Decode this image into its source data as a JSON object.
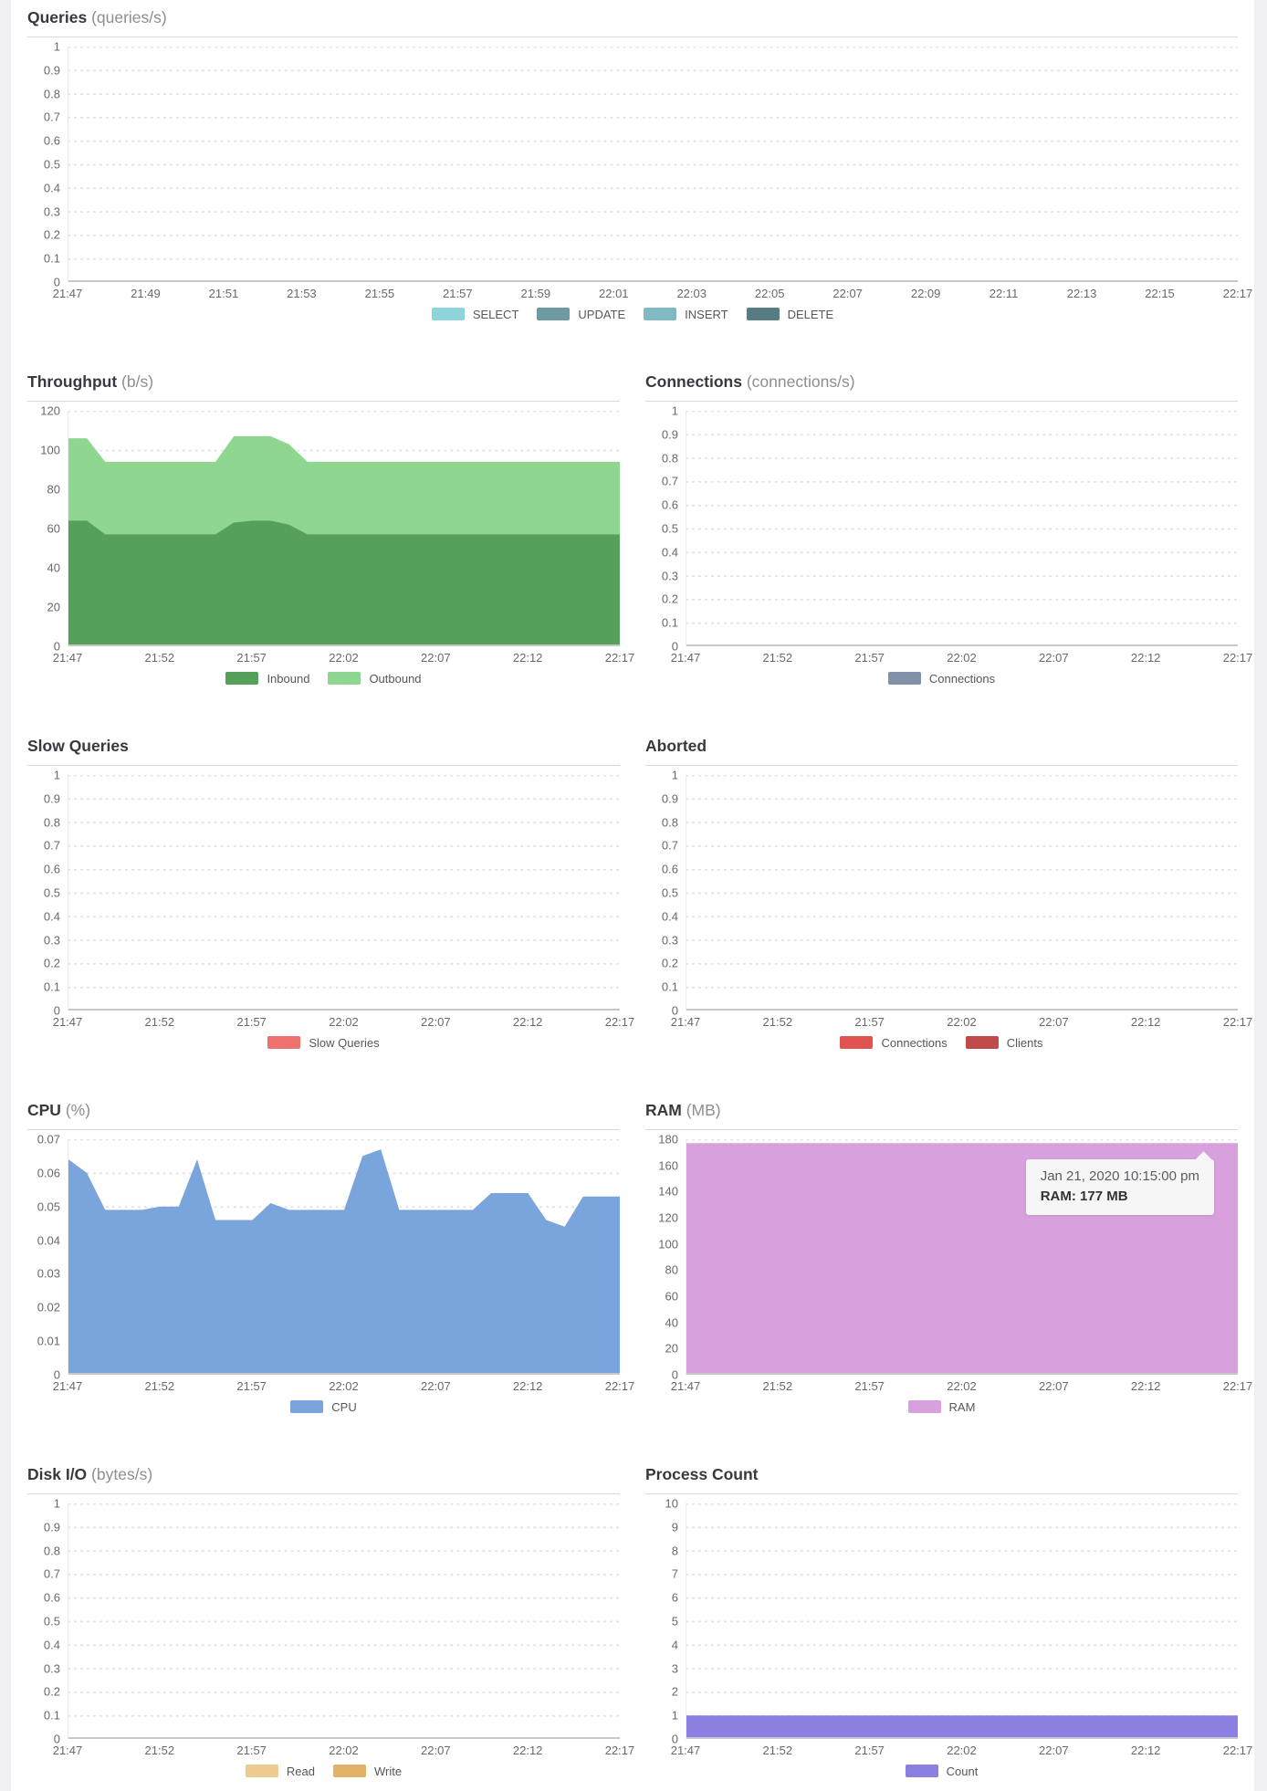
{
  "page": {
    "background": "#f0f0f2",
    "panel_background": "#ffffff"
  },
  "chart_data": [
    {
      "id": "queries",
      "type": "area",
      "stacked": false,
      "full_width": true,
      "title": "Queries",
      "unit": "(queries/s)",
      "ylim": [
        0,
        1
      ],
      "y_tick_labels": [
        "0",
        "0.1",
        "0.2",
        "0.3",
        "0.4",
        "0.5",
        "0.6",
        "0.7",
        "0.8",
        "0.9",
        "1"
      ],
      "x_tick_labels": [
        "21:47",
        "21:49",
        "21:51",
        "21:53",
        "21:55",
        "21:57",
        "21:59",
        "22:01",
        "22:03",
        "22:05",
        "22:07",
        "22:09",
        "22:11",
        "22:13",
        "22:15",
        "22:17"
      ],
      "grid": "dotted",
      "legend_position": "bottom",
      "series": [
        {
          "name": "SELECT",
          "color": "#8ed4db",
          "values": [
            0,
            0
          ]
        },
        {
          "name": "UPDATE",
          "color": "#6e9ba3",
          "values": [
            0,
            0
          ]
        },
        {
          "name": "INSERT",
          "color": "#80bac2",
          "values": [
            0,
            0
          ]
        },
        {
          "name": "DELETE",
          "color": "#587c84",
          "values": [
            0,
            0
          ]
        }
      ]
    },
    {
      "id": "throughput",
      "type": "area",
      "stacked": true,
      "full_width": false,
      "title": "Throughput",
      "unit": "(b/s)",
      "ylim": [
        0,
        120
      ],
      "y_tick_labels": [
        "0",
        "20",
        "40",
        "60",
        "80",
        "100",
        "120"
      ],
      "x_tick_labels": [
        "21:47",
        "21:52",
        "21:57",
        "22:02",
        "22:07",
        "22:12",
        "22:17"
      ],
      "grid": "dotted",
      "legend_position": "bottom",
      "series": [
        {
          "name": "Inbound",
          "color": "#55a15a",
          "values": [
            64,
            64,
            57,
            57,
            57,
            57,
            57,
            57,
            57,
            63,
            64,
            64,
            62,
            57,
            57,
            57,
            57,
            57,
            57,
            57,
            57,
            57,
            57,
            57,
            57,
            57,
            57,
            57,
            57,
            57,
            57
          ]
        },
        {
          "name": "Outbound",
          "color": "#8fd691",
          "values": [
            42,
            42,
            37,
            37,
            37,
            37,
            37,
            37,
            37,
            44,
            43,
            43,
            41,
            37,
            37,
            37,
            37,
            37,
            37,
            37,
            37,
            37,
            37,
            37,
            37,
            37,
            37,
            37,
            37,
            37,
            37
          ]
        }
      ]
    },
    {
      "id": "connections",
      "type": "area",
      "stacked": false,
      "full_width": false,
      "title": "Connections",
      "unit": "(connections/s)",
      "ylim": [
        0,
        1
      ],
      "y_tick_labels": [
        "0",
        "0.1",
        "0.2",
        "0.3",
        "0.4",
        "0.5",
        "0.6",
        "0.7",
        "0.8",
        "0.9",
        "1"
      ],
      "x_tick_labels": [
        "21:47",
        "21:52",
        "21:57",
        "22:02",
        "22:07",
        "22:12",
        "22:17"
      ],
      "grid": "dotted",
      "legend_position": "bottom",
      "series": [
        {
          "name": "Connections",
          "color": "#8291a8",
          "values": [
            0,
            0
          ]
        }
      ]
    },
    {
      "id": "slow-queries",
      "type": "area",
      "stacked": false,
      "full_width": false,
      "title": "Slow Queries",
      "unit": "",
      "ylim": [
        0,
        1
      ],
      "y_tick_labels": [
        "0",
        "0.1",
        "0.2",
        "0.3",
        "0.4",
        "0.5",
        "0.6",
        "0.7",
        "0.8",
        "0.9",
        "1"
      ],
      "x_tick_labels": [
        "21:47",
        "21:52",
        "21:57",
        "22:02",
        "22:07",
        "22:12",
        "22:17"
      ],
      "grid": "dotted",
      "legend_position": "bottom",
      "series": [
        {
          "name": "Slow Queries",
          "color": "#ee716d",
          "values": [
            0,
            0
          ]
        }
      ]
    },
    {
      "id": "aborted",
      "type": "area",
      "stacked": false,
      "full_width": false,
      "title": "Aborted",
      "unit": "",
      "ylim": [
        0,
        1
      ],
      "y_tick_labels": [
        "0",
        "0.1",
        "0.2",
        "0.3",
        "0.4",
        "0.5",
        "0.6",
        "0.7",
        "0.8",
        "0.9",
        "1"
      ],
      "x_tick_labels": [
        "21:47",
        "21:52",
        "21:57",
        "22:02",
        "22:07",
        "22:12",
        "22:17"
      ],
      "grid": "dotted",
      "legend_position": "bottom",
      "series": [
        {
          "name": "Connections",
          "color": "#e05350",
          "values": [
            0,
            0
          ]
        },
        {
          "name": "Clients",
          "color": "#c14b49",
          "values": [
            0,
            0
          ]
        }
      ]
    },
    {
      "id": "cpu",
      "type": "area",
      "stacked": false,
      "full_width": false,
      "title": "CPU",
      "unit": "(%)",
      "ylim": [
        0,
        0.07
      ],
      "y_tick_labels": [
        "0",
        "0.01",
        "0.02",
        "0.03",
        "0.04",
        "0.05",
        "0.06",
        "0.07"
      ],
      "x_tick_labels": [
        "21:47",
        "21:52",
        "21:57",
        "22:02",
        "22:07",
        "22:12",
        "22:17"
      ],
      "grid": "dotted",
      "legend_position": "bottom",
      "series": [
        {
          "name": "CPU",
          "color": "#7aa5dc",
          "values": [
            0.064,
            0.06,
            0.049,
            0.049,
            0.049,
            0.05,
            0.05,
            0.064,
            0.046,
            0.046,
            0.046,
            0.051,
            0.049,
            0.049,
            0.049,
            0.049,
            0.065,
            0.067,
            0.049,
            0.049,
            0.049,
            0.049,
            0.049,
            0.054,
            0.054,
            0.054,
            0.046,
            0.044,
            0.053,
            0.053,
            0.053
          ]
        }
      ]
    },
    {
      "id": "ram",
      "type": "area",
      "stacked": false,
      "full_width": false,
      "title": "RAM",
      "unit": "(MB)",
      "ylim": [
        0,
        180
      ],
      "y_tick_labels": [
        "0",
        "20",
        "40",
        "60",
        "80",
        "100",
        "120",
        "140",
        "160",
        "180"
      ],
      "x_tick_labels": [
        "21:47",
        "21:52",
        "21:57",
        "22:02",
        "22:07",
        "22:12",
        "22:17"
      ],
      "grid": "dotted",
      "legend_position": "bottom",
      "series": [
        {
          "name": "RAM",
          "color": "#d8a0dd",
          "values": [
            177,
            177
          ]
        }
      ],
      "tooltip": {
        "date_line": "Jan 21, 2020 10:15:00 pm",
        "value_line": "RAM: 177 MB"
      }
    },
    {
      "id": "disk-io",
      "type": "area",
      "stacked": false,
      "full_width": false,
      "title": "Disk I/O",
      "unit": "(bytes/s)",
      "ylim": [
        0,
        1
      ],
      "y_tick_labels": [
        "0",
        "0.1",
        "0.2",
        "0.3",
        "0.4",
        "0.5",
        "0.6",
        "0.7",
        "0.8",
        "0.9",
        "1"
      ],
      "x_tick_labels": [
        "21:47",
        "21:52",
        "21:57",
        "22:02",
        "22:07",
        "22:12",
        "22:17"
      ],
      "grid": "dotted",
      "legend_position": "bottom",
      "series": [
        {
          "name": "Read",
          "color": "#ecca90",
          "values": [
            0,
            0
          ]
        },
        {
          "name": "Write",
          "color": "#e3b269",
          "values": [
            0,
            0
          ]
        }
      ]
    },
    {
      "id": "process-count",
      "type": "area",
      "stacked": false,
      "full_width": false,
      "title": "Process Count",
      "unit": "",
      "ylim": [
        0,
        10
      ],
      "y_tick_labels": [
        "0",
        "1",
        "2",
        "3",
        "4",
        "5",
        "6",
        "7",
        "8",
        "9",
        "10"
      ],
      "x_tick_labels": [
        "21:47",
        "21:52",
        "21:57",
        "22:02",
        "22:07",
        "22:12",
        "22:17"
      ],
      "grid": "dotted",
      "legend_position": "bottom",
      "series": [
        {
          "name": "Count",
          "color": "#8b80e2",
          "values": [
            1,
            1
          ]
        }
      ]
    }
  ]
}
